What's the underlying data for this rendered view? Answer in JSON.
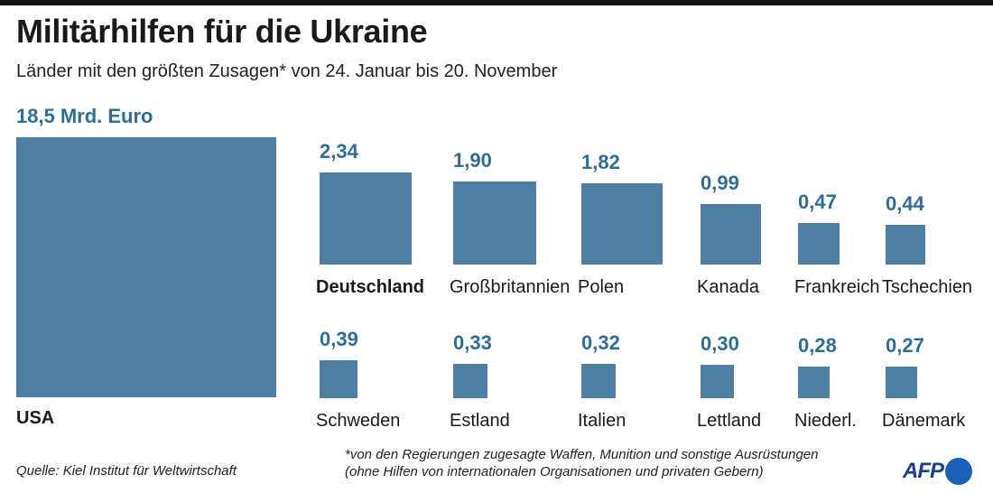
{
  "title": "Militärhilfen für die Ukraine",
  "subtitle": "Länder mit den größten Zusagen* von 24. Januar bis 20. November",
  "footnote_line1": "*von den Regierungen zugesagte Waffen, Munition und sonstige Ausrüstungen",
  "footnote_line2": "(ohne Hilfen von internationalen Organisationen und privaten Gebern)",
  "source": "Quelle: Kiel Institut für Weltwirtschaft",
  "logo": "AFP",
  "colors": {
    "bar": "#4e7fa3",
    "value": "#2f6d92"
  },
  "chart_data": {
    "type": "bar",
    "title": "Militärhilfen für die Ukraine",
    "unit": "Mrd. Euro",
    "encoding": "square area proportional to value",
    "categories": [
      "USA",
      "Deutschland",
      "Großbritannien",
      "Polen",
      "Kanada",
      "Frankreich",
      "Tschechien",
      "Schweden",
      "Estland",
      "Italien",
      "Lettland",
      "Niederl.",
      "Dänemark"
    ],
    "values": [
      18.5,
      2.34,
      1.9,
      1.82,
      0.99,
      0.47,
      0.44,
      0.39,
      0.33,
      0.32,
      0.3,
      0.28,
      0.27
    ],
    "value_labels": [
      "18,5",
      "2,34",
      "1,90",
      "1,82",
      "0,99",
      "0,47",
      "0,44",
      "0,39",
      "0,33",
      "0,32",
      "0,30",
      "0,28",
      "0,27"
    ],
    "highlighted": [
      "Deutschland"
    ]
  }
}
